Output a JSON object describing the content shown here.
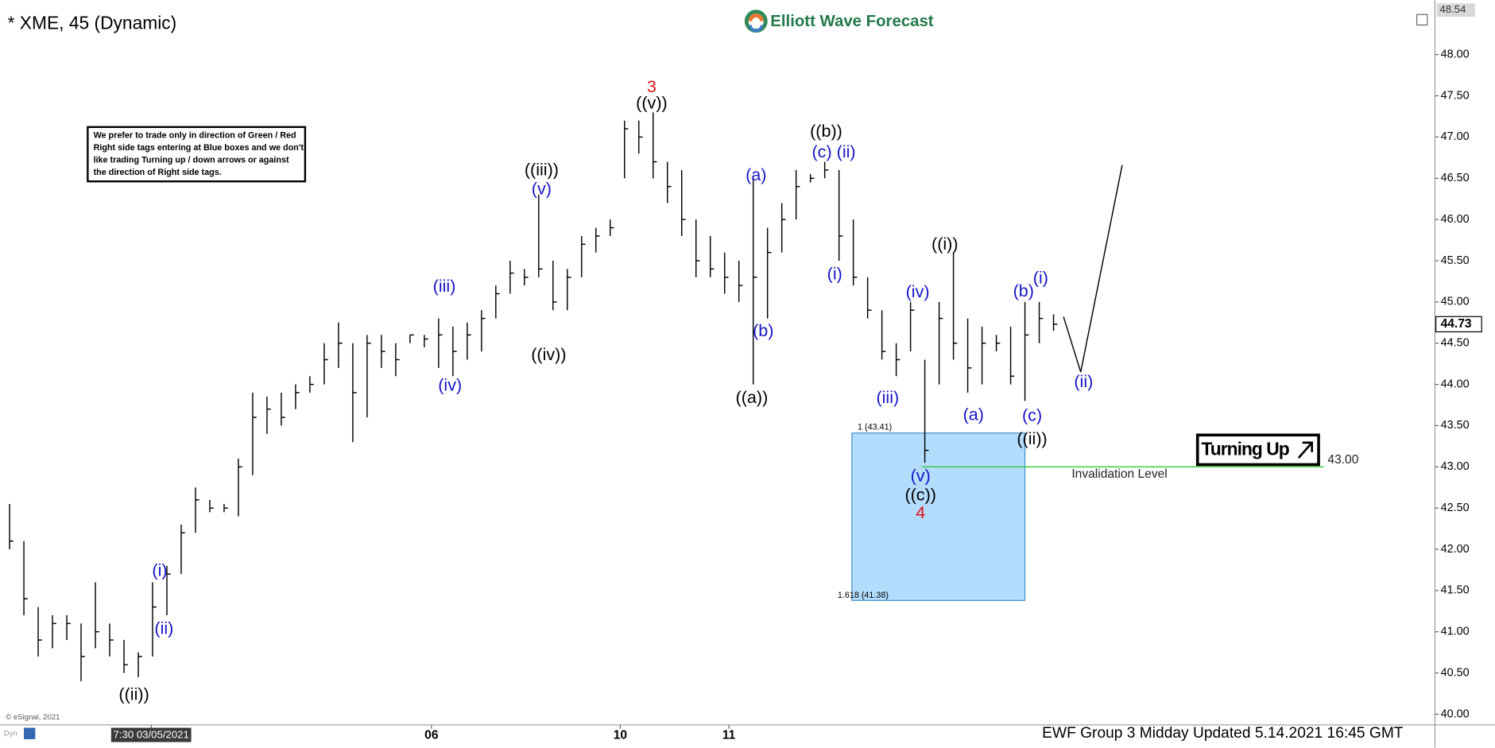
{
  "header": {
    "title": "* XME, 45 (Dynamic)",
    "logo": "Elliott Wave Forecast"
  },
  "note": [
    "We prefer to trade only in direction of Green / Red",
    "Right side tags entering at Blue boxes and we don't",
    "like trading Turning up / down arrows or against",
    "the direction of Right side tags."
  ],
  "footer": {
    "update": "EWF Group 3 Midday Updated 5.14.2021 16:45 GMT",
    "copyright": "© eSignal, 2021",
    "mode": "Dyn"
  },
  "turning_label": "Turning Up",
  "chart_data": {
    "type": "ohlc",
    "color": "#000000",
    "x": [
      0,
      1,
      2,
      3,
      4,
      5,
      6,
      7,
      8,
      9,
      10,
      11,
      12,
      13,
      14,
      15,
      16,
      17,
      18,
      19,
      20,
      21,
      22,
      23,
      24,
      25,
      26,
      27,
      28,
      29,
      30,
      31,
      32,
      33,
      34,
      35,
      36,
      37,
      38,
      39,
      40,
      41,
      42,
      43,
      44,
      45,
      46,
      47,
      48,
      49,
      50,
      51,
      52,
      53,
      54,
      55,
      56,
      57,
      58,
      59,
      60,
      61,
      62,
      63,
      64,
      65,
      66,
      67,
      68,
      69,
      70,
      71,
      72,
      73
    ],
    "high": [
      42.55,
      42.1,
      41.3,
      41.2,
      41.2,
      41.1,
      41.6,
      41.1,
      40.9,
      40.75,
      41.6,
      41.8,
      42.3,
      42.75,
      42.6,
      42.55,
      43.1,
      43.9,
      43.85,
      43.9,
      44.0,
      44.1,
      44.5,
      44.75,
      44.5,
      44.6,
      44.6,
      44.5,
      44.6,
      44.6,
      44.8,
      44.7,
      44.75,
      44.9,
      45.2,
      45.5,
      45.4,
      46.3,
      45.5,
      45.4,
      45.8,
      45.9,
      46.0,
      47.2,
      47.2,
      47.3,
      46.7,
      46.6,
      46.0,
      45.8,
      45.6,
      45.5,
      46.5,
      45.9,
      46.2,
      46.6,
      46.55,
      46.7,
      46.6,
      46.0,
      45.3,
      44.9,
      44.5,
      45.0,
      44.3,
      45.0,
      45.6,
      44.8,
      44.7,
      44.6,
      44.7,
      45.0,
      45.0,
      44.85
    ],
    "low": [
      42.0,
      41.2,
      40.7,
      40.8,
      40.9,
      40.4,
      40.8,
      40.7,
      40.5,
      40.45,
      40.7,
      41.2,
      41.7,
      42.2,
      42.45,
      42.45,
      42.4,
      42.9,
      43.4,
      43.5,
      43.7,
      43.9,
      44.0,
      44.2,
      43.3,
      43.6,
      44.2,
      44.1,
      44.5,
      44.45,
      44.2,
      44.1,
      44.3,
      44.4,
      44.8,
      45.1,
      45.2,
      45.3,
      44.9,
      44.9,
      45.3,
      45.6,
      45.8,
      46.5,
      46.8,
      46.5,
      46.2,
      45.8,
      45.3,
      45.3,
      45.1,
      45.0,
      44.0,
      44.8,
      45.6,
      46.0,
      46.45,
      46.5,
      45.5,
      45.2,
      44.8,
      44.3,
      44.1,
      44.4,
      43.05,
      44.0,
      44.3,
      43.9,
      44.0,
      44.4,
      44.0,
      43.8,
      44.5,
      44.65
    ],
    "close": [
      42.1,
      41.4,
      40.9,
      41.1,
      41.1,
      40.7,
      41.0,
      40.9,
      40.6,
      40.7,
      41.3,
      41.7,
      42.2,
      42.6,
      42.5,
      42.5,
      43.0,
      43.6,
      43.7,
      43.6,
      43.9,
      44.0,
      44.3,
      44.5,
      43.9,
      44.5,
      44.4,
      44.3,
      44.6,
      44.55,
      44.6,
      44.4,
      44.6,
      44.8,
      45.1,
      45.35,
      45.3,
      45.4,
      45.0,
      45.3,
      45.7,
      45.8,
      45.9,
      47.1,
      47.0,
      46.7,
      46.4,
      46.0,
      45.5,
      45.4,
      45.3,
      45.2,
      45.3,
      45.6,
      46.0,
      46.4,
      46.5,
      46.6,
      45.8,
      45.3,
      44.9,
      44.4,
      44.3,
      44.9,
      43.2,
      44.8,
      44.5,
      44.2,
      44.5,
      44.5,
      44.1,
      44.6,
      44.8,
      44.73
    ],
    "xlim": [
      -0.67,
      99.67
    ],
    "ylim": [
      39.87,
      48.66
    ],
    "xticks": [
      {
        "value": 9.9,
        "label": "7:30 03/05/2021"
      },
      {
        "value": 29.5,
        "label": "06"
      },
      {
        "value": 42.7,
        "label": "10"
      },
      {
        "value": 50.3,
        "label": "11"
      }
    ],
    "yticks": [
      {
        "value": 40,
        "label": "40.00"
      },
      {
        "value": 40.5,
        "label": "40.50"
      },
      {
        "value": 41,
        "label": "41.00"
      },
      {
        "value": 41.5,
        "label": "41.50"
      },
      {
        "value": 42,
        "label": "42.00"
      },
      {
        "value": 42.5,
        "label": "42.50"
      },
      {
        "value": 43,
        "label": "43.00"
      },
      {
        "value": 43.5,
        "label": "43.50"
      },
      {
        "value": 44,
        "label": "44.00"
      },
      {
        "value": 44.5,
        "label": "44.50"
      },
      {
        "value": 45,
        "label": "45.00"
      },
      {
        "value": 45.5,
        "label": "45.50"
      },
      {
        "value": 46,
        "label": "46.00"
      },
      {
        "value": 46.5,
        "label": "46.50"
      },
      {
        "value": 47,
        "label": "47.00"
      },
      {
        "value": 47.5,
        "label": "47.50"
      },
      {
        "value": 48,
        "label": "48.00"
      }
    ],
    "top_price": {
      "value": 48.54,
      "label": "48.54"
    },
    "last_price": {
      "value": 44.73,
      "label": "44.73"
    },
    "box": {
      "x": [
        58.9,
        71.0
      ],
      "top": 43.41,
      "bottom": 41.38,
      "top_label": "1 (43.41)",
      "bottom_label": "1.618 (41.38)",
      "color": "#b3dcfd"
    },
    "invalidation": {
      "value": 43,
      "label": "43.00",
      "text": "Invalidation Level",
      "x": [
        63.8,
        91.9
      ],
      "color": "#33cc33"
    },
    "projection": {
      "x": [
        73.7,
        74.9,
        77.8
      ],
      "y": [
        44.82,
        44.15,
        46.66
      ]
    },
    "annotations": [
      {
        "text": "((ii))",
        "color": "#000000",
        "x": 8.7,
        "y": 40.23
      },
      {
        "text": "(i)",
        "color": "#1515c8",
        "x": 10.5,
        "y": 41.73
      },
      {
        "text": "(ii)",
        "color": "#1515c8",
        "x": 10.8,
        "y": 41.03
      },
      {
        "text": "(iii)",
        "color": "#1515c8",
        "x": 30.4,
        "y": 45.18
      },
      {
        "text": "(iv)",
        "color": "#1515c8",
        "x": 30.8,
        "y": 43.98
      },
      {
        "text": "((iii))",
        "color": "#000000",
        "x": 37.2,
        "y": 46.59
      },
      {
        "text": "(v)",
        "color": "#1515c8",
        "x": 37.2,
        "y": 46.36
      },
      {
        "text": "((iv))",
        "color": "#000000",
        "x": 37.7,
        "y": 44.35
      },
      {
        "text": "3",
        "color": "#e01010",
        "x": 44.9,
        "y": 47.6
      },
      {
        "text": "((v))",
        "color": "#000000",
        "x": 44.9,
        "y": 47.4
      },
      {
        "text": "(a)",
        "color": "#1515c8",
        "x": 52.2,
        "y": 46.53
      },
      {
        "text": "(b)",
        "color": "#1515c8",
        "x": 52.7,
        "y": 44.64
      },
      {
        "text": "((a))",
        "color": "#000000",
        "x": 51.9,
        "y": 43.83
      },
      {
        "text": "((b))",
        "color": "#000000",
        "x": 57.1,
        "y": 47.06
      },
      {
        "text": "(c)",
        "color": "#1515c8",
        "x": 56.8,
        "y": 46.81
      },
      {
        "text": "(ii)",
        "color": "#1515c8",
        "x": 58.5,
        "y": 46.81
      },
      {
        "text": "(i)",
        "color": "#1515c8",
        "x": 57.7,
        "y": 45.33
      },
      {
        "text": "(iii)",
        "color": "#1515c8",
        "x": 61.4,
        "y": 43.83
      },
      {
        "text": "(iv)",
        "color": "#1515c8",
        "x": 63.5,
        "y": 45.11
      },
      {
        "text": "(v)",
        "color": "#1515c8",
        "x": 63.7,
        "y": 42.88
      },
      {
        "text": "((c))",
        "color": "#000000",
        "x": 63.7,
        "y": 42.65
      },
      {
        "text": "4",
        "color": "#e01010",
        "x": 63.7,
        "y": 42.43
      },
      {
        "text": "((i))",
        "color": "#000000",
        "x": 65.4,
        "y": 45.69
      },
      {
        "text": "(a)",
        "color": "#1515c8",
        "x": 67.4,
        "y": 43.62
      },
      {
        "text": "(b)",
        "color": "#1515c8",
        "x": 70.9,
        "y": 45.12
      },
      {
        "text": "(i)",
        "color": "#1515c8",
        "x": 72.1,
        "y": 45.28
      },
      {
        "text": "(c)",
        "color": "#1515c8",
        "x": 71.5,
        "y": 43.61
      },
      {
        "text": "((ii))",
        "color": "#000000",
        "x": 71.5,
        "y": 43.33
      },
      {
        "text": "(ii)",
        "color": "#1515c8",
        "x": 75.1,
        "y": 44.02
      }
    ]
  }
}
